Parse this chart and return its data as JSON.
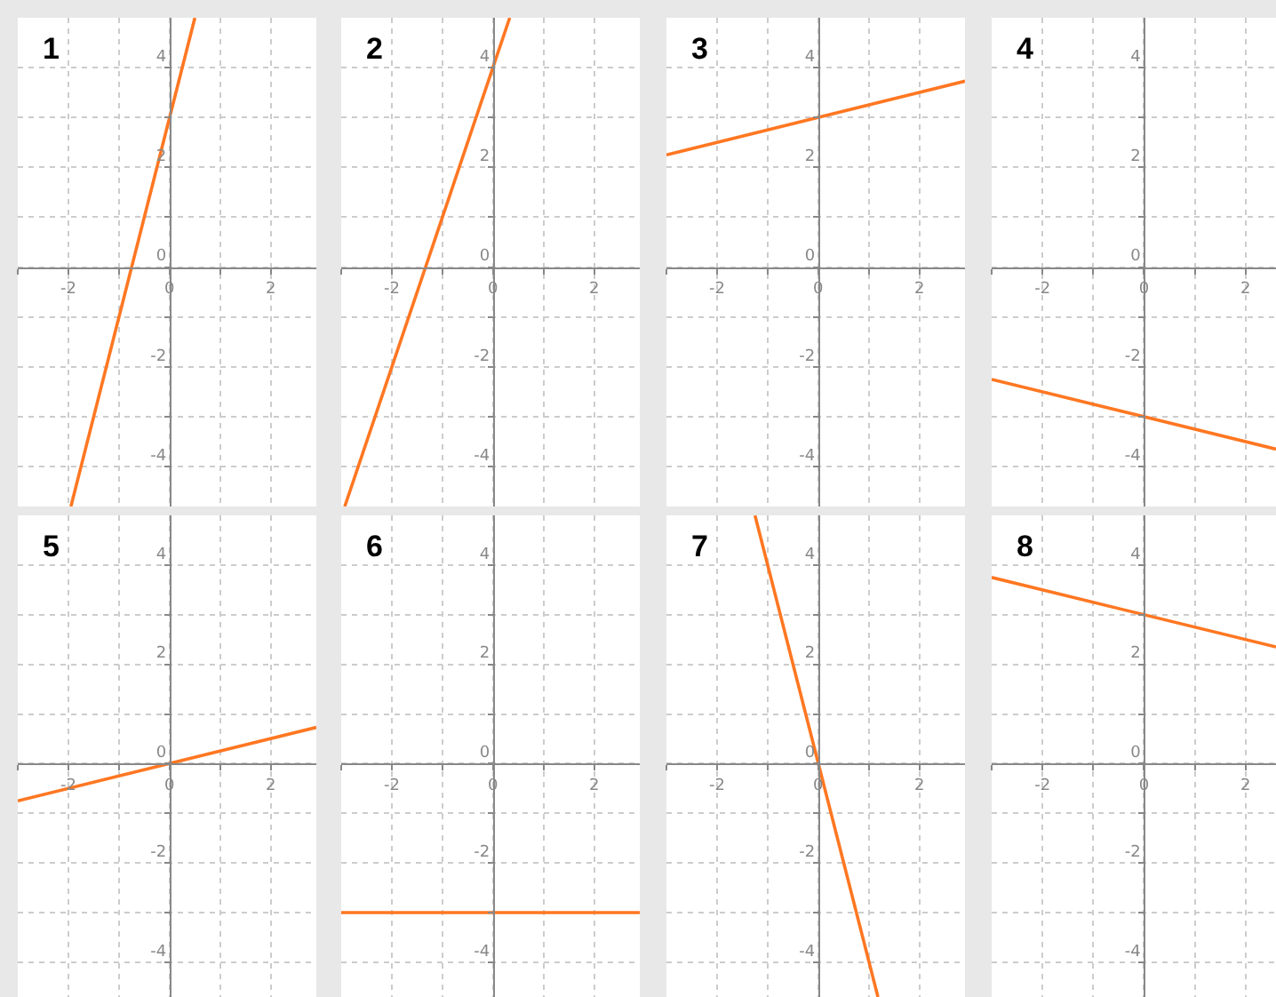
{
  "chart_data": [
    {
      "type": "line",
      "title": "1",
      "xlim": [
        -3,
        2.9
      ],
      "ylim": [
        -4.8,
        5
      ],
      "xticks": [
        {
          "value": -3,
          "label": null
        },
        -2,
        {
          "value": -1,
          "label": null
        },
        0,
        {
          "value": 1,
          "label": null
        },
        2
      ],
      "yticks": [
        {
          "value": -4,
          "label": "-4"
        },
        {
          "value": -3,
          "label": null
        },
        {
          "value": -2,
          "label": "-2"
        },
        {
          "value": -1,
          "label": null
        },
        0,
        {
          "value": 1,
          "label": null
        },
        2,
        {
          "value": 3,
          "label": null
        },
        4
      ],
      "grid": true,
      "series": [
        {
          "color": "#ff7722",
          "x": [
            -1.95,
            0.5
          ],
          "values": [
            -4.8,
            5
          ]
        }
      ]
    },
    {
      "type": "line",
      "title": "2",
      "xlim": [
        -3,
        2.9
      ],
      "ylim": [
        -4.8,
        5
      ],
      "xticks": [
        {
          "value": -3,
          "label": null
        },
        -2,
        {
          "value": -1,
          "label": null
        },
        0,
        {
          "value": 1,
          "label": null
        },
        2
      ],
      "yticks": [
        {
          "value": -4,
          "label": "-4"
        },
        {
          "value": -3,
          "label": null
        },
        {
          "value": -2,
          "label": "-2"
        },
        {
          "value": -1,
          "label": null
        },
        0,
        {
          "value": 1,
          "label": null
        },
        2,
        {
          "value": 3,
          "label": null
        },
        4
      ],
      "grid": true,
      "series": [
        {
          "color": "#ff7722",
          "x": [
            -2.93,
            0.33
          ],
          "values": [
            -4.8,
            5
          ]
        }
      ]
    },
    {
      "type": "line",
      "title": "3",
      "xlim": [
        -3,
        2.9
      ],
      "ylim": [
        -4.8,
        5
      ],
      "xticks": [
        {
          "value": -3,
          "label": null
        },
        -2,
        {
          "value": -1,
          "label": null
        },
        0,
        {
          "value": 1,
          "label": null
        },
        2
      ],
      "yticks": [
        {
          "value": -4,
          "label": "-4"
        },
        {
          "value": -3,
          "label": null
        },
        {
          "value": -2,
          "label": "-2"
        },
        {
          "value": -1,
          "label": null
        },
        0,
        {
          "value": 1,
          "label": null
        },
        2,
        {
          "value": 3,
          "label": null
        },
        4
      ],
      "grid": true,
      "series": [
        {
          "color": "#ff7722",
          "x": [
            -3,
            2.9
          ],
          "values": [
            2.25,
            3.73
          ]
        }
      ]
    },
    {
      "type": "line",
      "title": "4",
      "xlim": [
        -3,
        2.6
      ],
      "ylim": [
        -4.8,
        5
      ],
      "xticks": [
        {
          "value": -3,
          "label": null
        },
        -2,
        {
          "value": -1,
          "label": null
        },
        0,
        {
          "value": 1,
          "label": null
        },
        2
      ],
      "yticks": [
        {
          "value": -4,
          "label": "-4"
        },
        {
          "value": -3,
          "label": null
        },
        {
          "value": -2,
          "label": "-2"
        },
        {
          "value": -1,
          "label": null
        },
        0,
        {
          "value": 1,
          "label": null
        },
        2,
        {
          "value": 3,
          "label": null
        },
        4
      ],
      "grid": true,
      "series": [
        {
          "color": "#ff7722",
          "x": [
            -3,
            2.6
          ],
          "values": [
            -2.25,
            -3.65
          ]
        }
      ]
    },
    {
      "type": "line",
      "title": "5",
      "xlim": [
        -3,
        2.9
      ],
      "ylim": [
        -4.7,
        5
      ],
      "xticks": [
        {
          "value": -3,
          "label": null
        },
        -2,
        {
          "value": -1,
          "label": null
        },
        0,
        {
          "value": 1,
          "label": null
        },
        2
      ],
      "yticks": [
        {
          "value": -4,
          "label": "-4"
        },
        {
          "value": -3,
          "label": null
        },
        {
          "value": -2,
          "label": "-2"
        },
        {
          "value": -1,
          "label": null
        },
        0,
        {
          "value": 1,
          "label": null
        },
        2,
        {
          "value": 3,
          "label": null
        },
        4
      ],
      "grid": true,
      "series": [
        {
          "color": "#ff7722",
          "x": [
            -3,
            2.9
          ],
          "values": [
            -0.75,
            0.73
          ]
        }
      ]
    },
    {
      "type": "line",
      "title": "6",
      "xlim": [
        -3,
        2.9
      ],
      "ylim": [
        -4.7,
        5
      ],
      "xticks": [
        {
          "value": -3,
          "label": null
        },
        -2,
        {
          "value": -1,
          "label": null
        },
        0,
        {
          "value": 1,
          "label": null
        },
        2
      ],
      "yticks": [
        {
          "value": -4,
          "label": "-4"
        },
        {
          "value": -3,
          "label": null
        },
        {
          "value": -2,
          "label": "-2"
        },
        {
          "value": -1,
          "label": null
        },
        0,
        {
          "value": 1,
          "label": null
        },
        2,
        {
          "value": 3,
          "label": null
        },
        4
      ],
      "grid": true,
      "series": [
        {
          "color": "#ff7722",
          "x": [
            -3,
            2.9
          ],
          "values": [
            -3,
            -3
          ]
        }
      ]
    },
    {
      "type": "line",
      "title": "7",
      "xlim": [
        -3,
        2.9
      ],
      "ylim": [
        -4.7,
        5
      ],
      "xticks": [
        {
          "value": -3,
          "label": null
        },
        -2,
        {
          "value": -1,
          "label": null
        },
        0,
        {
          "value": 1,
          "label": null
        },
        2
      ],
      "yticks": [
        {
          "value": -4,
          "label": "-4"
        },
        {
          "value": -3,
          "label": null
        },
        {
          "value": -2,
          "label": "-2"
        },
        {
          "value": -1,
          "label": null
        },
        0,
        {
          "value": 1,
          "label": null
        },
        2,
        {
          "value": 3,
          "label": null
        },
        4
      ],
      "grid": true,
      "series": [
        {
          "color": "#ff7722",
          "x": [
            -1.25,
            1.18
          ],
          "values": [
            5,
            -4.7
          ]
        }
      ]
    },
    {
      "type": "line",
      "title": "8",
      "xlim": [
        -3,
        2.6
      ],
      "ylim": [
        -4.7,
        5
      ],
      "xticks": [
        {
          "value": -3,
          "label": null
        },
        -2,
        {
          "value": -1,
          "label": null
        },
        0,
        {
          "value": 1,
          "label": null
        },
        2
      ],
      "yticks": [
        {
          "value": -4,
          "label": "-4"
        },
        {
          "value": -3,
          "label": null
        },
        {
          "value": -2,
          "label": "-2"
        },
        {
          "value": -1,
          "label": null
        },
        0,
        {
          "value": 1,
          "label": null
        },
        2,
        {
          "value": 3,
          "label": null
        },
        4
      ],
      "grid": true,
      "series": [
        {
          "color": "#ff7722",
          "x": [
            -3,
            2.6
          ],
          "values": [
            3.75,
            2.35
          ]
        }
      ]
    }
  ]
}
